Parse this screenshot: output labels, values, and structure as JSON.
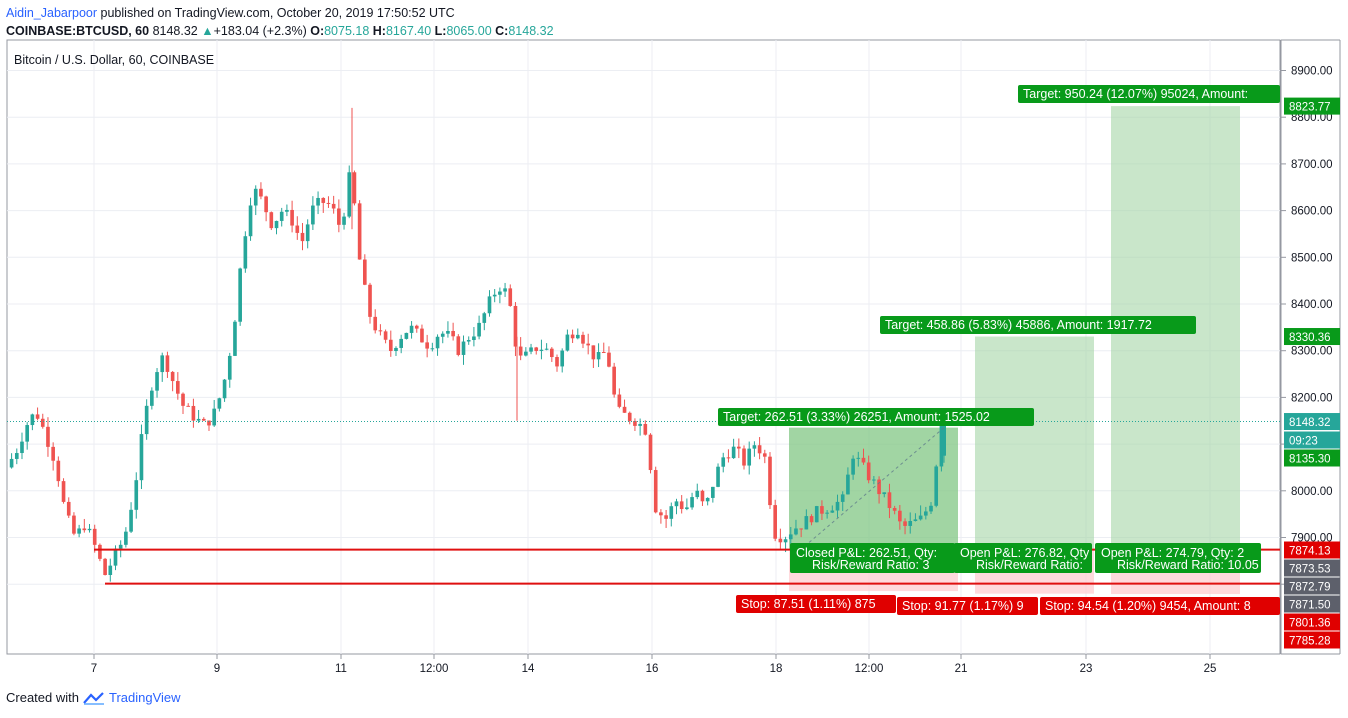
{
  "header": {
    "author": "Aidin_Jabarpoor",
    "published_text": "published on TradingView.com, October 20, 2019 17:50:52 UTC",
    "symbol": "COINBASE:BTCUSD, 60",
    "last": "8148.32",
    "change": "+183.04 (+2.3%)",
    "open_label": "O:",
    "open": "8075.18",
    "high_label": "H:",
    "high": "8167.40",
    "low_label": "L:",
    "low": "8065.00",
    "close_label": "C:",
    "close": "8148.32"
  },
  "footer": {
    "created_with": "Created with",
    "brand": "TradingView"
  },
  "colors": {
    "up": "#26a69a",
    "down": "#ef5350",
    "target": "#089981",
    "stop": "#f00000",
    "profit_zone": "#a5d6a7",
    "loss_zone": "#ffcdd2"
  },
  "chart_data": {
    "type": "candlestick",
    "title": "Bitcoin / U.S. Dollar, 60, COINBASE",
    "ylim": [
      7730,
      8950
    ],
    "y_ticks": [
      "8900.00",
      "8800.00",
      "8700.00",
      "8600.00",
      "8500.00",
      "8400.00",
      "8300.00",
      "8200.00",
      "8100.00",
      "8000.00",
      "7900.00",
      "7800.00"
    ],
    "x_ticks": [
      "7",
      "9",
      "11",
      "12:00",
      "14",
      "16",
      "18",
      "12:00",
      "21",
      "23",
      "25"
    ],
    "grid": true,
    "last_price": 8148.32,
    "price_labels": [
      {
        "value": 8823.77,
        "text": "8823.77",
        "kind": "target"
      },
      {
        "value": 8330.36,
        "text": "8330.36",
        "kind": "target"
      },
      {
        "value": 8148.32,
        "text": "8148.32",
        "kind": "last"
      },
      {
        "value": 8125,
        "text": "09:23",
        "kind": "countdown"
      },
      {
        "value": 8135.3,
        "text": "8135.30",
        "kind": "target"
      },
      {
        "value": 7874.13,
        "text": "7874.13",
        "kind": "stop"
      },
      {
        "value": 7873.53,
        "text": "7873.53",
        "kind": "gray"
      },
      {
        "value": 7872.79,
        "text": "7872.79",
        "kind": "gray"
      },
      {
        "value": 7871.5,
        "text": "7871.50",
        "kind": "gray"
      },
      {
        "value": 7801.36,
        "text": "7801.36",
        "kind": "stop"
      },
      {
        "value": 7785.28,
        "text": "7785.28",
        "kind": "stop"
      }
    ],
    "hlines": [
      7874.13,
      7801.36
    ],
    "positions": [
      {
        "entry": 7872.79,
        "target": 8135.3,
        "stop": 7785.28,
        "target_label": "Target: 262.51 (3.33%) 26251, Amount: 1525.02",
        "stop_label": "Stop: 87.51 (1.11%) 875",
        "pnl_label": "Closed P&L: 262.51, Qty:",
        "rr_label": "Risk/Reward Ratio: 3"
      },
      {
        "entry": 7871.5,
        "target": 8330.36,
        "stop": 7779.73,
        "target_label": "Target: 458.86 (5.83%) 45886, Amount: 1917.72",
        "stop_label": "Stop: 91.77 (1.17%) 9",
        "pnl_label": "Open P&L: 276.82, Qty",
        "rr_label": "Risk/Reward Ratio:"
      },
      {
        "entry": 7873.53,
        "target": 8823.77,
        "stop": 7778.99,
        "target_label": "Target: 950.24 (12.07%) 95024, Amount:",
        "stop_label": "Stop: 94.54 (1.20%) 9454, Amount: 8",
        "pnl_label": "Open P&L: 274.79, Qty: 2",
        "rr_label": "Risk/Reward Ratio: 10.05"
      }
    ],
    "price_path": [
      8050,
      8085,
      8140,
      8170,
      8120,
      8060,
      7950,
      7900,
      7930,
      7880,
      7820,
      7860,
      7900,
      8000,
      8150,
      8250,
      8290,
      8230,
      8180,
      8160,
      8140,
      8160,
      8220,
      8330,
      8520,
      8650,
      8620,
      8570,
      8600,
      8580,
      8530,
      8600,
      8620,
      8610,
      8560,
      8690,
      8470,
      8370,
      8330,
      8300,
      8330,
      8350,
      8330,
      8310,
      8340,
      8330,
      8300,
      8330,
      8350,
      8400,
      8440,
      8420,
      8280,
      8290,
      8310,
      8300,
      8270,
      8330,
      8350,
      8310,
      8280,
      8300,
      8170,
      8160,
      8150,
      8130,
      7960,
      7940,
      7980,
      7960,
      8000,
      7960,
      8030,
      8080,
      8090,
      8060,
      8100,
      8080,
      7910,
      7900,
      7920,
      7930,
      7950,
      7960,
      7970,
      7980,
      8080,
      8050,
      8020,
      7990,
      7960,
      7920,
      7930,
      7940,
      7980,
      8148
    ]
  }
}
